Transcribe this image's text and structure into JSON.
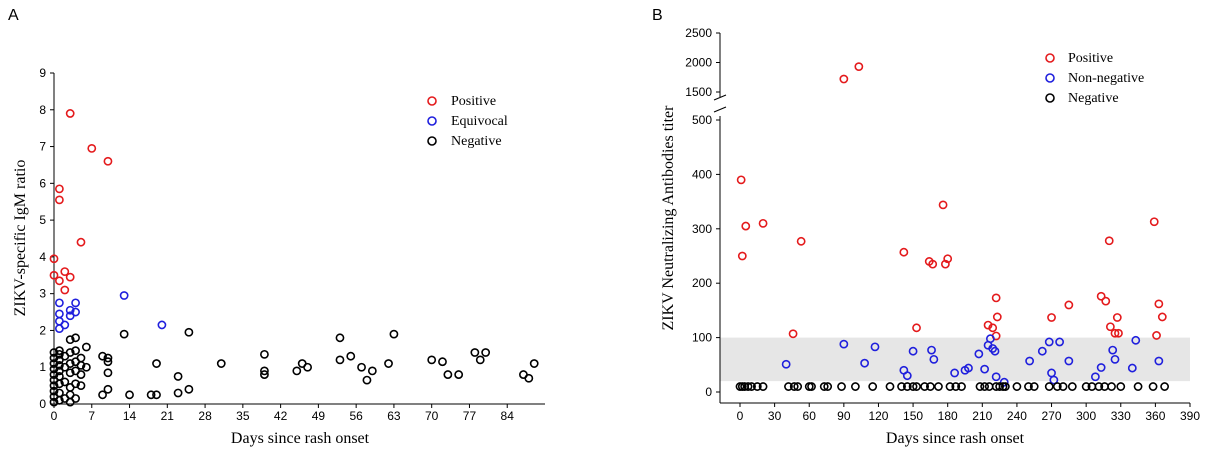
{
  "chart_data": [
    {
      "panel": "A",
      "type": "scatter",
      "xlabel": "Days since rash onset",
      "ylabel": "ZIKV-specific IgM ratio",
      "xlim": [
        0,
        91
      ],
      "ylim": [
        0,
        9
      ],
      "xticks": [
        "0",
        "7",
        "14",
        "21",
        "28",
        "35",
        "42",
        "49",
        "56",
        "63",
        "70",
        "77",
        "84"
      ],
      "yticks": [
        "0",
        "1",
        "2",
        "3",
        "4",
        "5",
        "6",
        "7",
        "8",
        "9"
      ],
      "legend_position": "top-right",
      "series": [
        {
          "name": "Positive",
          "color": "#e41a1c",
          "points": [
            [
              0,
              3.95
            ],
            [
              0,
              3.5
            ],
            [
              1,
              5.85
            ],
            [
              1,
              5.55
            ],
            [
              1,
              3.35
            ],
            [
              2,
              3.6
            ],
            [
              2,
              3.1
            ],
            [
              3,
              3.45
            ],
            [
              3,
              7.9
            ],
            [
              5,
              4.4
            ],
            [
              7,
              6.95
            ],
            [
              10,
              6.6
            ]
          ]
        },
        {
          "name": "Equivocal",
          "color": "#1f1fdd",
          "points": [
            [
              1,
              2.75
            ],
            [
              1,
              2.45
            ],
            [
              1,
              2.25
            ],
            [
              1,
              2.05
            ],
            [
              2,
              2.15
            ],
            [
              3,
              2.4
            ],
            [
              3,
              2.55
            ],
            [
              4,
              2.5
            ],
            [
              4,
              2.75
            ],
            [
              13,
              2.95
            ],
            [
              20,
              2.15
            ]
          ]
        },
        {
          "name": "Negative",
          "color": "#000000",
          "points": [
            [
              0,
              0.05
            ],
            [
              0,
              0.2
            ],
            [
              0,
              0.35
            ],
            [
              0,
              0.5
            ],
            [
              0,
              0.65
            ],
            [
              0,
              0.8
            ],
            [
              0,
              0.95
            ],
            [
              0,
              1.1
            ],
            [
              0,
              1.25
            ],
            [
              0,
              1.4
            ],
            [
              1,
              0.1
            ],
            [
              1,
              0.3
            ],
            [
              1,
              0.55
            ],
            [
              1,
              0.75
            ],
            [
              1,
              0.9
            ],
            [
              1,
              1.05
            ],
            [
              1,
              1.2
            ],
            [
              1,
              1.35
            ],
            [
              1,
              1.45
            ],
            [
              2,
              0.15
            ],
            [
              2,
              0.6
            ],
            [
              2,
              1.0
            ],
            [
              2,
              1.3
            ],
            [
              3,
              0.05
            ],
            [
              3,
              0.25
            ],
            [
              3,
              0.45
            ],
            [
              3,
              0.85
            ],
            [
              3,
              1.1
            ],
            [
              3,
              1.4
            ],
            [
              3,
              1.75
            ],
            [
              4,
              0.15
            ],
            [
              4,
              0.55
            ],
            [
              4,
              0.9
            ],
            [
              4,
              1.15
            ],
            [
              4,
              1.45
            ],
            [
              4,
              1.8
            ],
            [
              5,
              0.5
            ],
            [
              5,
              0.8
            ],
            [
              5,
              1.25
            ],
            [
              5,
              1.05
            ],
            [
              6,
              1.55
            ],
            [
              6,
              1.0
            ],
            [
              9,
              1.3
            ],
            [
              9,
              0.25
            ],
            [
              10,
              0.4
            ],
            [
              10,
              0.85
            ],
            [
              10,
              1.15
            ],
            [
              10,
              1.25
            ],
            [
              13,
              1.9
            ],
            [
              14,
              0.25
            ],
            [
              18,
              0.25
            ],
            [
              19,
              0.25
            ],
            [
              19,
              1.1
            ],
            [
              23,
              0.3
            ],
            [
              23,
              0.75
            ],
            [
              25,
              1.95
            ],
            [
              25,
              0.4
            ],
            [
              31,
              1.1
            ],
            [
              39,
              1.35
            ],
            [
              39,
              0.9
            ],
            [
              39,
              0.8
            ],
            [
              45,
              0.9
            ],
            [
              46,
              1.1
            ],
            [
              47,
              1.0
            ],
            [
              53,
              1.8
            ],
            [
              53,
              1.2
            ],
            [
              55,
              1.3
            ],
            [
              57,
              1.0
            ],
            [
              58,
              0.65
            ],
            [
              59,
              0.9
            ],
            [
              62,
              1.1
            ],
            [
              63,
              1.9
            ],
            [
              70,
              1.2
            ],
            [
              72,
              1.15
            ],
            [
              73,
              0.8
            ],
            [
              75,
              0.8
            ],
            [
              78,
              1.4
            ],
            [
              79,
              1.2
            ],
            [
              80,
              1.4
            ],
            [
              87,
              0.8
            ],
            [
              88,
              0.7
            ],
            [
              89,
              1.1
            ]
          ]
        }
      ]
    },
    {
      "panel": "B",
      "type": "scatter",
      "xlabel": "Days since rash onset",
      "ylabel": "ZIKV Neutralizing Antibodies titer",
      "xlim": [
        -15,
        390
      ],
      "ylim_lower": [
        -20,
        500
      ],
      "ylim_upper": [
        1400,
        2500
      ],
      "axis_break": true,
      "shaded_band": [
        20,
        100
      ],
      "xticks": [
        "0",
        "30",
        "60",
        "90",
        "120",
        "150",
        "180",
        "210",
        "240",
        "270",
        "300",
        "330",
        "360",
        "390"
      ],
      "yticks_lower": [
        "0",
        "100",
        "200",
        "300",
        "400",
        "500"
      ],
      "yticks_upper": [
        "1500",
        "2000",
        "2500"
      ],
      "legend_position": "top-right",
      "series": [
        {
          "name": "Positive",
          "color": "#e41a1c",
          "points": [
            [
              1,
              390
            ],
            [
              2,
              250
            ],
            [
              5,
              305
            ],
            [
              20,
              310
            ],
            [
              46,
              107
            ],
            [
              53,
              277
            ],
            [
              90,
              1720
            ],
            [
              103,
              1930
            ],
            [
              142,
              257
            ],
            [
              153,
              118
            ],
            [
              164,
              240
            ],
            [
              167,
              235
            ],
            [
              176,
              344
            ],
            [
              178,
              235
            ],
            [
              180,
              245
            ],
            [
              215,
              123
            ],
            [
              219,
              118
            ],
            [
              222,
              173
            ],
            [
              222,
              103
            ],
            [
              223,
              138
            ],
            [
              270,
              137
            ],
            [
              285,
              160
            ],
            [
              313,
              176
            ],
            [
              317,
              167
            ],
            [
              320,
              278
            ],
            [
              321,
              120
            ],
            [
              325,
              108
            ],
            [
              327,
              137
            ],
            [
              328,
              108
            ],
            [
              359,
              313
            ],
            [
              361,
              104
            ],
            [
              363,
              162
            ],
            [
              366,
              138
            ]
          ]
        },
        {
          "name": "Non-negative",
          "color": "#1f1fdd",
          "points": [
            [
              40,
              51
            ],
            [
              90,
              88
            ],
            [
              108,
              53
            ],
            [
              117,
              83
            ],
            [
              142,
              40
            ],
            [
              145,
              30
            ],
            [
              150,
              75
            ],
            [
              166,
              77
            ],
            [
              168,
              60
            ],
            [
              186,
              35
            ],
            [
              195,
              40
            ],
            [
              198,
              44
            ],
            [
              207,
              70
            ],
            [
              212,
              42
            ],
            [
              215,
              86
            ],
            [
              217,
              98
            ],
            [
              219,
              80
            ],
            [
              221,
              75
            ],
            [
              222,
              28
            ],
            [
              229,
              18
            ],
            [
              251,
              57
            ],
            [
              262,
              75
            ],
            [
              268,
              92
            ],
            [
              270,
              35
            ],
            [
              272,
              22
            ],
            [
              277,
              92
            ],
            [
              285,
              57
            ],
            [
              308,
              28
            ],
            [
              313,
              45
            ],
            [
              323,
              77
            ],
            [
              325,
              60
            ],
            [
              340,
              44
            ],
            [
              343,
              95
            ],
            [
              363,
              57
            ]
          ]
        },
        {
          "name": "Negative",
          "color": "#000000",
          "points": [
            [
              0,
              10
            ],
            [
              2,
              10
            ],
            [
              4,
              10
            ],
            [
              7,
              10
            ],
            [
              10,
              10
            ],
            [
              15,
              10
            ],
            [
              20,
              10
            ],
            [
              42,
              10
            ],
            [
              47,
              10
            ],
            [
              50,
              10
            ],
            [
              60,
              10
            ],
            [
              62,
              10
            ],
            [
              73,
              10
            ],
            [
              76,
              10
            ],
            [
              88,
              10
            ],
            [
              100,
              10
            ],
            [
              115,
              10
            ],
            [
              130,
              10
            ],
            [
              140,
              10
            ],
            [
              145,
              10
            ],
            [
              150,
              10
            ],
            [
              153,
              10
            ],
            [
              160,
              10
            ],
            [
              165,
              10
            ],
            [
              172,
              10
            ],
            [
              182,
              10
            ],
            [
              187,
              10
            ],
            [
              192,
              10
            ],
            [
              208,
              10
            ],
            [
              212,
              10
            ],
            [
              216,
              10
            ],
            [
              222,
              10
            ],
            [
              225,
              10
            ],
            [
              228,
              10
            ],
            [
              230,
              10
            ],
            [
              240,
              10
            ],
            [
              250,
              10
            ],
            [
              255,
              10
            ],
            [
              268,
              10
            ],
            [
              275,
              10
            ],
            [
              280,
              10
            ],
            [
              288,
              10
            ],
            [
              300,
              10
            ],
            [
              305,
              10
            ],
            [
              311,
              10
            ],
            [
              316,
              10
            ],
            [
              322,
              10
            ],
            [
              330,
              10
            ],
            [
              345,
              10
            ],
            [
              358,
              10
            ],
            [
              368,
              10
            ]
          ]
        }
      ]
    }
  ]
}
